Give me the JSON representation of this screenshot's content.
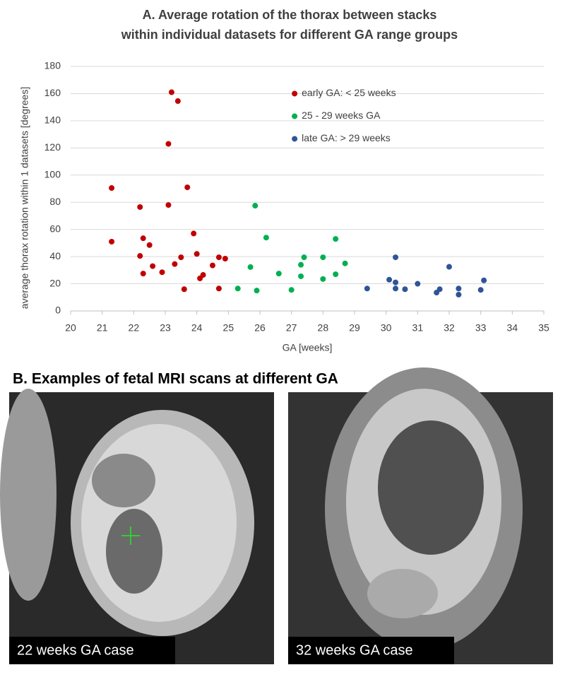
{
  "chart_data": {
    "type": "scatter",
    "title": [
      "A. Average rotation of the thorax  between stacks",
      "within  individual datasets for different GA range groups"
    ],
    "x_label": "GA [weeks]",
    "y_label": "average thorax rotation within 1 datasets [degrees]",
    "xlim": [
      20,
      35
    ],
    "xticks": [
      20,
      21,
      22,
      23,
      24,
      25,
      26,
      27,
      28,
      29,
      30,
      31,
      32,
      33,
      34,
      35
    ],
    "ylim": [
      0,
      180
    ],
    "yticks": [
      0,
      20,
      40,
      60,
      80,
      100,
      120,
      140,
      160,
      180
    ],
    "grid": true,
    "legend": "top-center",
    "series": [
      {
        "name": "early GA: < 25 weeks",
        "color": "#c00000",
        "x": [
          21.3,
          21.3,
          22.2,
          23.2,
          23.4,
          23.1,
          23.1,
          23.7,
          22.3,
          22.5,
          22.2,
          22.6,
          22.3,
          22.9,
          23.5,
          23.3,
          23.9,
          24.0,
          24.2,
          24.1,
          24.5,
          23.6,
          24.7,
          24.9,
          24.7
        ],
        "values": [
          90.5,
          51,
          76.5,
          161,
          154.5,
          123,
          78,
          91,
          53.5,
          48.5,
          40.5,
          33,
          27.5,
          28.5,
          39.5,
          34.5,
          57,
          42,
          26.5,
          24,
          33.5,
          16,
          39.5,
          38.5,
          16.5
        ]
      },
      {
        "name": "25 - 29 weeks GA",
        "color": "#00b050",
        "x": [
          25.85,
          26.2,
          25.7,
          25.3,
          25.9,
          26.6,
          27.0,
          27.3,
          27.4,
          27.3,
          28.0,
          28.0,
          28.4,
          28.4,
          28.7
        ],
        "values": [
          77.5,
          54,
          32.3,
          16.5,
          15,
          27.5,
          15.5,
          34,
          39.5,
          25.5,
          39.5,
          23.5,
          53,
          27,
          35
        ]
      },
      {
        "name": "late GA: > 29 weeks",
        "color": "#2f5597",
        "x": [
          29.4,
          30.1,
          30.3,
          30.3,
          30.3,
          30.6,
          31.0,
          31.6,
          31.7,
          32.0,
          32.3,
          32.3,
          33.0,
          33.1
        ],
        "values": [
          16.5,
          23,
          39.5,
          21,
          16.5,
          16,
          20,
          13.5,
          16,
          32.5,
          16.5,
          12,
          15.5,
          22.5
        ]
      }
    ]
  },
  "panel_b": {
    "title": "B. Examples of fetal MRI scans at different GA",
    "images": [
      {
        "caption": "22 weeks GA case"
      },
      {
        "caption": "32 weeks GA case"
      }
    ]
  }
}
